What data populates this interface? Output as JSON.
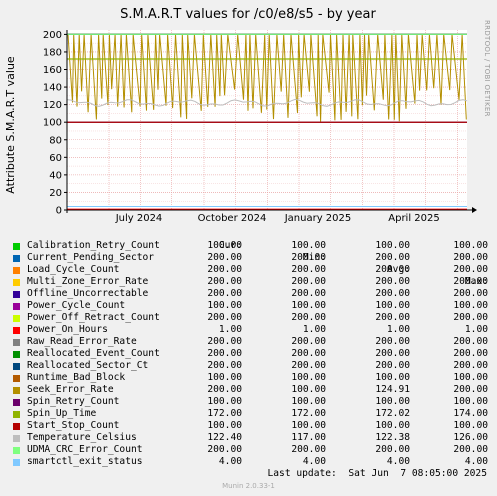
{
  "chart_data": {
    "type": "line",
    "title": "S.M.A.R.T values for /c0/e8/s5 - by year",
    "ylabel": "Attribute S.M.A.R.T value",
    "ylim": [
      0,
      205
    ],
    "yticks": [
      0,
      20,
      40,
      60,
      80,
      100,
      120,
      140,
      160,
      180,
      200
    ],
    "xticks": [
      "July 2024",
      "October 2024",
      "January 2025",
      "April 2025"
    ],
    "side_label": "RRDTOOL / TOBI OETIKER",
    "legend_headers": [
      "Cur:",
      "Min:",
      "Avg:",
      "Max:"
    ],
    "series": [
      {
        "name": "Calibration_Retry_Count",
        "color": "#00cc00",
        "cur": "100.00",
        "min": "100.00",
        "avg": "100.00",
        "max": "100.00"
      },
      {
        "name": "Current_Pending_Sector",
        "color": "#0066b3",
        "cur": "200.00",
        "min": "200.00",
        "avg": "200.00",
        "max": "200.00"
      },
      {
        "name": "Load_Cycle_Count",
        "color": "#ff8000",
        "cur": "200.00",
        "min": "200.00",
        "avg": "200.00",
        "max": "200.00"
      },
      {
        "name": "Multi_Zone_Error_Rate",
        "color": "#ffcc00",
        "cur": "200.00",
        "min": "200.00",
        "avg": "200.00",
        "max": "200.00"
      },
      {
        "name": "Offline_Uncorrectable",
        "color": "#330099",
        "cur": "200.00",
        "min": "200.00",
        "avg": "200.00",
        "max": "200.00"
      },
      {
        "name": "Power_Cycle_Count",
        "color": "#990099",
        "cur": "100.00",
        "min": "100.00",
        "avg": "100.00",
        "max": "100.00"
      },
      {
        "name": "Power_Off_Retract_Count",
        "color": "#ccff00",
        "cur": "200.00",
        "min": "200.00",
        "avg": "200.00",
        "max": "200.00"
      },
      {
        "name": "Power_On_Hours",
        "color": "#ff0000",
        "cur": "1.00",
        "min": "1.00",
        "avg": "1.00",
        "max": "1.00"
      },
      {
        "name": "Raw_Read_Error_Rate",
        "color": "#808080",
        "cur": "200.00",
        "min": "200.00",
        "avg": "200.00",
        "max": "200.00"
      },
      {
        "name": "Reallocated_Event_Count",
        "color": "#008f00",
        "cur": "200.00",
        "min": "200.00",
        "avg": "200.00",
        "max": "200.00"
      },
      {
        "name": "Reallocated_Sector_Ct",
        "color": "#00487d",
        "cur": "200.00",
        "min": "200.00",
        "avg": "200.00",
        "max": "200.00"
      },
      {
        "name": "Runtime_Bad_Block",
        "color": "#b35a00",
        "cur": "100.00",
        "min": "100.00",
        "avg": "100.00",
        "max": "100.00"
      },
      {
        "name": "Seek_Error_Rate",
        "color": "#b38f00",
        "cur": "200.00",
        "min": "100.00",
        "avg": "124.91",
        "max": "200.00"
      },
      {
        "name": "Spin_Retry_Count",
        "color": "#6b006b",
        "cur": "100.00",
        "min": "100.00",
        "avg": "100.00",
        "max": "100.00"
      },
      {
        "name": "Spin_Up_Time",
        "color": "#8fb300",
        "cur": "172.00",
        "min": "172.00",
        "avg": "172.02",
        "max": "174.00"
      },
      {
        "name": "Start_Stop_Count",
        "color": "#b30000",
        "cur": "100.00",
        "min": "100.00",
        "avg": "100.00",
        "max": "100.00"
      },
      {
        "name": "Temperature_Celsius",
        "color": "#bebebe",
        "cur": "122.40",
        "min": "117.00",
        "avg": "122.38",
        "max": "126.00"
      },
      {
        "name": "UDMA_CRC_Error_Count",
        "color": "#80ff80",
        "cur": "200.00",
        "min": "200.00",
        "avg": "200.00",
        "max": "200.00"
      },
      {
        "name": "smartctl_exit_status",
        "color": "#80c9ff",
        "cur": "4.00",
        "min": "4.00",
        "avg": "4.00",
        "max": "4.00"
      }
    ]
  },
  "footer": {
    "last_update": "Last update:  Sat Jun  7 08:05:00 2025",
    "munin": "Munin 2.0.33-1"
  }
}
